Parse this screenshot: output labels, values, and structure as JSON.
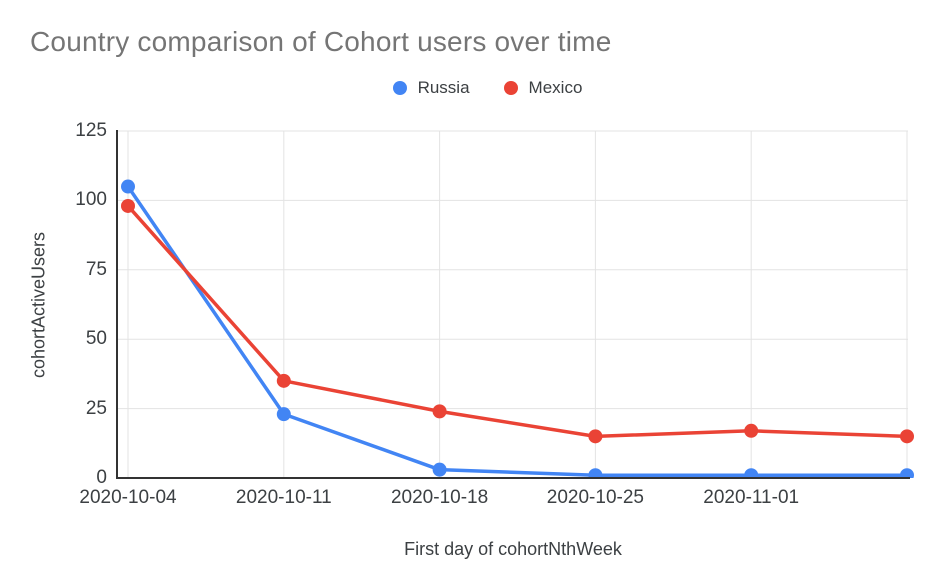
{
  "chart_data": {
    "type": "line",
    "title": "Country comparison of Cohort users over time",
    "xlabel": "First day of cohortNthWeek",
    "ylabel": "cohortActiveUsers",
    "x_tick_labels": [
      "2020-10-04",
      "2020-10-11",
      "2020-10-18",
      "2020-10-25",
      "2020-11-01",
      ""
    ],
    "y_ticks": [
      0,
      25,
      50,
      75,
      100,
      125
    ],
    "ylim": [
      0,
      125
    ],
    "grid": true,
    "legend_position": "top-center",
    "series": [
      {
        "name": "Russia",
        "color": "#4285F4",
        "values": [
          105,
          23,
          3,
          1,
          1,
          1
        ]
      },
      {
        "name": "Mexico",
        "color": "#EA4335",
        "values": [
          98,
          35,
          24,
          15,
          17,
          15
        ]
      }
    ],
    "styles": {
      "title_color": "#757575",
      "tick_color": "#3c4043",
      "axis_title_color": "#3c4043",
      "legend_text_color": "#3c4043",
      "grid_color": "#e3e3e3",
      "axis_color": "#333333",
      "background": "#ffffff"
    }
  }
}
